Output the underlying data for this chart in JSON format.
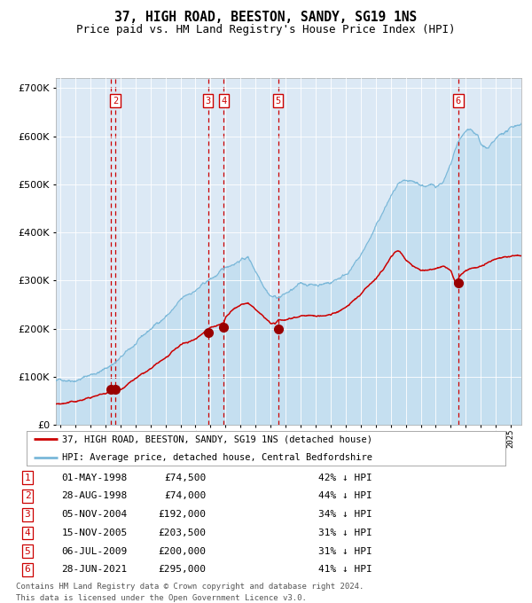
{
  "title": "37, HIGH ROAD, BEESTON, SANDY, SG19 1NS",
  "subtitle": "Price paid vs. HM Land Registry's House Price Index (HPI)",
  "title_fontsize": 10.5,
  "subtitle_fontsize": 9,
  "bg_color": "#dce9f5",
  "grid_color": "#ffffff",
  "ylim": [
    0,
    720000
  ],
  "xlim_start": 1994.7,
  "xlim_end": 2025.7,
  "hpi_color": "#7ab8d9",
  "hpi_fill_color": "#c5dff0",
  "price_color": "#cc0000",
  "sale_marker_color": "#990000",
  "vline_color": "#cc0000",
  "sale_dates_x": [
    1998.667,
    2004.833,
    2005.875,
    2009.5,
    2021.5
  ],
  "sale_prices_y": [
    74000,
    192000,
    203500,
    200000,
    295000
  ],
  "sale_labels": [
    "2",
    "3",
    "4",
    "5",
    "6"
  ],
  "sale1_x": 1998.333,
  "sale1_y": 74500,
  "legend_label_red": "37, HIGH ROAD, BEESTON, SANDY, SG19 1NS (detached house)",
  "legend_label_blue": "HPI: Average price, detached house, Central Bedfordshire",
  "table_rows": [
    [
      "1",
      "01-MAY-1998",
      "£74,500",
      "42% ↓ HPI"
    ],
    [
      "2",
      "28-AUG-1998",
      "£74,000",
      "44% ↓ HPI"
    ],
    [
      "3",
      "05-NOV-2004",
      "£192,000",
      "34% ↓ HPI"
    ],
    [
      "4",
      "15-NOV-2005",
      "£203,500",
      "31% ↓ HPI"
    ],
    [
      "5",
      "06-JUL-2009",
      "£200,000",
      "31% ↓ HPI"
    ],
    [
      "6",
      "28-JUN-2021",
      "£295,000",
      "41% ↓ HPI"
    ]
  ],
  "footer": "Contains HM Land Registry data © Crown copyright and database right 2024.\nThis data is licensed under the Open Government Licence v3.0.",
  "hpi_keypoints_x": [
    1994.7,
    1995,
    1996,
    1997,
    1998,
    1999,
    2000,
    2001,
    2002,
    2003,
    2004,
    2005,
    2006,
    2007,
    2007.5,
    2008,
    2008.5,
    2009,
    2009.5,
    2010,
    2011,
    2012,
    2013,
    2014,
    2015,
    2016,
    2016.5,
    2017,
    2017.5,
    2018,
    2018.5,
    2019,
    2019.5,
    2020,
    2020.5,
    2021,
    2021.5,
    2022,
    2022.3,
    2022.8,
    2023,
    2023.5,
    2024,
    2024.5,
    2025,
    2025.7
  ],
  "hpi_keypoints_y": [
    92000,
    93000,
    100000,
    112000,
    125000,
    148000,
    173000,
    200000,
    228000,
    258000,
    278000,
    298000,
    318000,
    340000,
    345000,
    318000,
    295000,
    275000,
    272000,
    280000,
    295000,
    295000,
    302000,
    322000,
    358000,
    415000,
    445000,
    475000,
    498000,
    495000,
    488000,
    482000,
    480000,
    478000,
    490000,
    520000,
    565000,
    582000,
    590000,
    575000,
    555000,
    545000,
    558000,
    570000,
    578000,
    590000
  ],
  "price_keypoints_x": [
    1994.7,
    1995,
    1995.5,
    1996,
    1997,
    1998.2,
    1998.35,
    1998.5,
    1998.7,
    1999,
    2000,
    2001,
    2002,
    2003,
    2004,
    2004.85,
    2005,
    2005.5,
    2005.9,
    2006,
    2006.5,
    2007,
    2007.5,
    2008,
    2008.5,
    2009,
    2009.3,
    2009.55,
    2010,
    2010.5,
    2011,
    2011.5,
    2012,
    2012.5,
    2013,
    2014,
    2015,
    2016,
    2016.5,
    2017,
    2017.3,
    2017.6,
    2018,
    2018.5,
    2019,
    2019.5,
    2020,
    2020.5,
    2021,
    2021.35,
    2021.55,
    2022,
    2022.5,
    2023,
    2023.5,
    2024,
    2025,
    2025.7
  ],
  "price_keypoints_y": [
    44000,
    45000,
    46000,
    48000,
    56000,
    66000,
    74500,
    74000,
    73000,
    75000,
    96000,
    112000,
    132000,
    155000,
    168000,
    192000,
    196000,
    200000,
    203500,
    215000,
    228000,
    237000,
    240000,
    225000,
    210000,
    195000,
    192000,
    200000,
    202000,
    208000,
    213000,
    215000,
    212000,
    213000,
    215000,
    230000,
    255000,
    290000,
    308000,
    335000,
    345000,
    348000,
    330000,
    318000,
    308000,
    310000,
    312000,
    318000,
    308000,
    278000,
    295000,
    308000,
    315000,
    318000,
    322000,
    328000,
    335000,
    340000
  ]
}
